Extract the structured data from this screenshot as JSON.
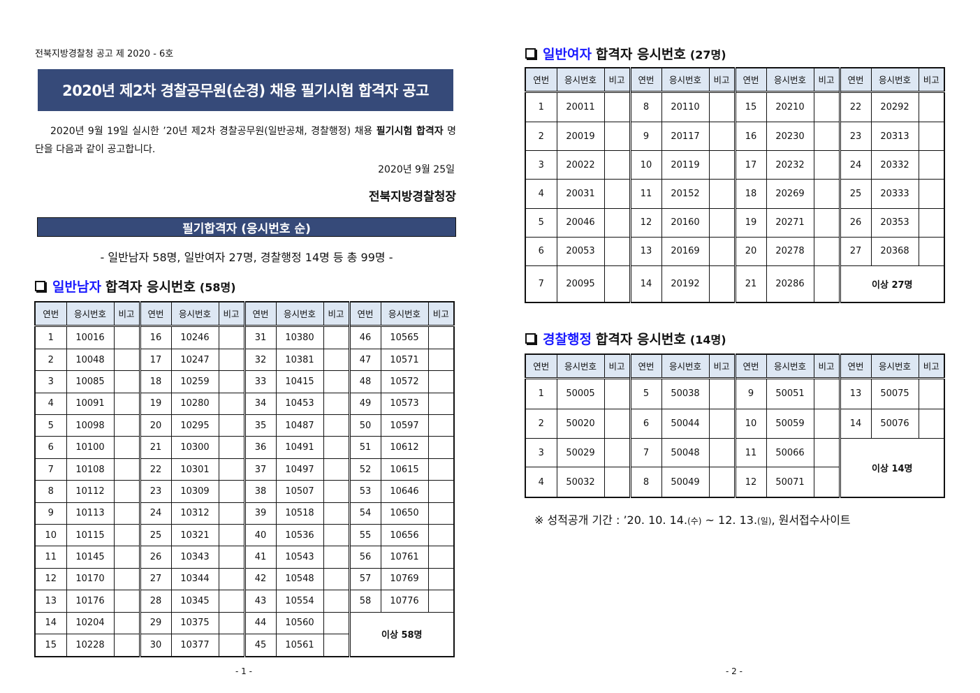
{
  "page1": {
    "notice_no": "전북지방경찰청 공고 제 2020 - 6호",
    "title": "2020년 제2차 경찰공무원(순경) 채용 필기시험 합격자 공고",
    "intro_part1": "2020년 9월 19일 실시한 ’20년 제2차 경찰공무원(일반공채, 경찰행정) 채용 ",
    "intro_bold": "필기시험 합격자",
    "intro_part2": " 명단을 다음과 같이 공고합니다.",
    "date": "2020년 9월 25일",
    "signer": "전북지방경찰청장",
    "band_title": "필기합격자 (응시번호 순)",
    "summary": "- 일반남자 58명, 일반여자 27명, 경찰행정 14명 등 총 99명 -",
    "page_number": "- 1 -"
  },
  "page2": {
    "page_number": "- 2 -",
    "note_a": "※ 성적공개 기간 : ’20. 10. 14.",
    "note_b": "(수)",
    "note_c": " ~ 12. 13.",
    "note_d": "(일)",
    "note_e": ", 원서접수사이트"
  },
  "headers": [
    "연번",
    "응시번호",
    "비고"
  ],
  "sections": [
    {
      "category": "일반남자",
      "suffix": "합격자 응시번호",
      "count": "(58명)",
      "total_label": "이상   58명",
      "columns": [
        [
          [
            "1",
            "10016"
          ],
          [
            "2",
            "10048"
          ],
          [
            "3",
            "10085"
          ],
          [
            "4",
            "10091"
          ],
          [
            "5",
            "10098"
          ],
          [
            "6",
            "10100"
          ],
          [
            "7",
            "10108"
          ],
          [
            "8",
            "10112"
          ],
          [
            "9",
            "10113"
          ],
          [
            "10",
            "10115"
          ],
          [
            "11",
            "10145"
          ],
          [
            "12",
            "10170"
          ],
          [
            "13",
            "10176"
          ],
          [
            "14",
            "10204"
          ],
          [
            "15",
            "10228"
          ]
        ],
        [
          [
            "16",
            "10246"
          ],
          [
            "17",
            "10247"
          ],
          [
            "18",
            "10259"
          ],
          [
            "19",
            "10280"
          ],
          [
            "20",
            "10295"
          ],
          [
            "21",
            "10300"
          ],
          [
            "22",
            "10301"
          ],
          [
            "23",
            "10309"
          ],
          [
            "24",
            "10312"
          ],
          [
            "25",
            "10321"
          ],
          [
            "26",
            "10343"
          ],
          [
            "27",
            "10344"
          ],
          [
            "28",
            "10345"
          ],
          [
            "29",
            "10375"
          ],
          [
            "30",
            "10377"
          ]
        ],
        [
          [
            "31",
            "10380"
          ],
          [
            "32",
            "10381"
          ],
          [
            "33",
            "10415"
          ],
          [
            "34",
            "10453"
          ],
          [
            "35",
            "10487"
          ],
          [
            "36",
            "10491"
          ],
          [
            "37",
            "10497"
          ],
          [
            "38",
            "10507"
          ],
          [
            "39",
            "10518"
          ],
          [
            "40",
            "10536"
          ],
          [
            "41",
            "10543"
          ],
          [
            "42",
            "10548"
          ],
          [
            "43",
            "10554"
          ],
          [
            "44",
            "10560"
          ],
          [
            "45",
            "10561"
          ]
        ],
        [
          [
            "46",
            "10565"
          ],
          [
            "47",
            "10571"
          ],
          [
            "48",
            "10572"
          ],
          [
            "49",
            "10573"
          ],
          [
            "50",
            "10597"
          ],
          [
            "51",
            "10612"
          ],
          [
            "52",
            "10615"
          ],
          [
            "53",
            "10646"
          ],
          [
            "54",
            "10650"
          ],
          [
            "55",
            "10656"
          ],
          [
            "56",
            "10761"
          ],
          [
            "57",
            "10769"
          ],
          [
            "58",
            "10776"
          ]
        ]
      ]
    },
    {
      "category": "일반여자",
      "suffix": "합격자 응시번호",
      "count": "(27명)",
      "total_label": "이상   27명",
      "columns": [
        [
          [
            "1",
            "20011"
          ],
          [
            "2",
            "20019"
          ],
          [
            "3",
            "20022"
          ],
          [
            "4",
            "20031"
          ],
          [
            "5",
            "20046"
          ],
          [
            "6",
            "20053"
          ],
          [
            "7",
            "20095"
          ]
        ],
        [
          [
            "8",
            "20110"
          ],
          [
            "9",
            "20117"
          ],
          [
            "10",
            "20119"
          ],
          [
            "11",
            "20152"
          ],
          [
            "12",
            "20160"
          ],
          [
            "13",
            "20169"
          ],
          [
            "14",
            "20192"
          ]
        ],
        [
          [
            "15",
            "20210"
          ],
          [
            "16",
            "20230"
          ],
          [
            "17",
            "20232"
          ],
          [
            "18",
            "20269"
          ],
          [
            "19",
            "20271"
          ],
          [
            "20",
            "20278"
          ],
          [
            "21",
            "20286"
          ]
        ],
        [
          [
            "22",
            "20292"
          ],
          [
            "23",
            "20313"
          ],
          [
            "24",
            "20332"
          ],
          [
            "25",
            "20333"
          ],
          [
            "26",
            "20353"
          ],
          [
            "27",
            "20368"
          ]
        ]
      ]
    },
    {
      "category": "경찰행정",
      "suffix": "합격자 응시번호",
      "count": "(14명)",
      "total_label": "이상   14명",
      "columns": [
        [
          [
            "1",
            "50005"
          ],
          [
            "2",
            "50020"
          ],
          [
            "3",
            "50029"
          ],
          [
            "4",
            "50032"
          ]
        ],
        [
          [
            "5",
            "50038"
          ],
          [
            "6",
            "50044"
          ],
          [
            "7",
            "50048"
          ],
          [
            "8",
            "50049"
          ]
        ],
        [
          [
            "9",
            "50051"
          ],
          [
            "10",
            "50059"
          ],
          [
            "11",
            "50066"
          ],
          [
            "12",
            "50071"
          ]
        ],
        [
          [
            "13",
            "50075"
          ],
          [
            "14",
            "50076"
          ]
        ]
      ]
    }
  ]
}
